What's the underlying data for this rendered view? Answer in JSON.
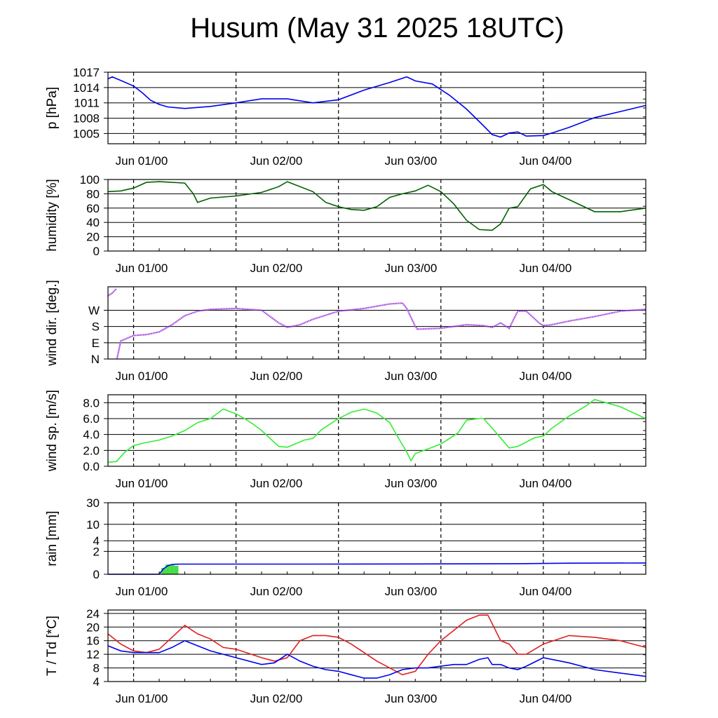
{
  "title": "Husum (May 31 2025 18UTC)",
  "x_ticks": [
    "Jun 01/00",
    "Jun 02/00",
    "Jun 03/00",
    "Jun 04/00"
  ],
  "chart_data": [
    {
      "type": "line",
      "ylabel": "p [hPa]",
      "ylim": [
        1003,
        1017
      ],
      "yticks": [
        1005,
        1008,
        1011,
        1014,
        1017
      ],
      "ytick_labels": [
        "1005",
        "1008",
        "1011",
        "1014",
        "1017"
      ],
      "x_hours": [
        0,
        1,
        3,
        6,
        8,
        10,
        12,
        14,
        18,
        24,
        30,
        36,
        42,
        48,
        54,
        60,
        66,
        70,
        72,
        76,
        80,
        84,
        88,
        90,
        92,
        94,
        96,
        98,
        102,
        104,
        108,
        114,
        120,
        126
      ],
      "series": [
        {
          "color": "#0000ee",
          "values": [
            1015.7,
            1016.1,
            1015.4,
            1014.3,
            1013.0,
            1011.5,
            1010.7,
            1010.2,
            1009.9,
            1010.3,
            1011.0,
            1011.8,
            1011.8,
            1011.0,
            1011.6,
            1013.5,
            1015.0,
            1016.1,
            1015.3,
            1014.7,
            1012.5,
            1009.8,
            1006.5,
            1004.8,
            1004.3,
            1005.1,
            1005.3,
            1004.5,
            1004.6,
            1005.1,
            1006.2,
            1008.1,
            1009.3,
            1010.5
          ]
        }
      ]
    },
    {
      "type": "line",
      "ylabel": "humidity [%]",
      "ylim": [
        0,
        100
      ],
      "yticks": [
        0,
        20,
        40,
        60,
        80,
        100
      ],
      "ytick_labels": [
        "0",
        "20",
        "40",
        "60",
        "80",
        "100"
      ],
      "x_hours": [
        0,
        3,
        6,
        9,
        12,
        15,
        18,
        20,
        21,
        24,
        30,
        36,
        40,
        42,
        48,
        51,
        54,
        57,
        60,
        63,
        66,
        69,
        72,
        75,
        78,
        81,
        84,
        87,
        90,
        92,
        94,
        96,
        99,
        102,
        104,
        108,
        114,
        120,
        126
      ],
      "series": [
        {
          "color": "#006000",
          "values": [
            83,
            84,
            88,
            96,
            97,
            96,
            95,
            80,
            68,
            74,
            77,
            82,
            90,
            97,
            83,
            68,
            62,
            58,
            57,
            62,
            75,
            80,
            84,
            92,
            83,
            66,
            43,
            30,
            29,
            38,
            60,
            62,
            87,
            93,
            83,
            72,
            55,
            55,
            60
          ]
        }
      ]
    },
    {
      "type": "scatter",
      "ylabel": "wind dir. [deg.]",
      "ylim": [
        0,
        400
      ],
      "yticks": [
        0,
        90,
        180,
        270
      ],
      "ytick_labels": [
        "N",
        "E",
        "S",
        "W"
      ],
      "x_hours": [
        0,
        1,
        2,
        2.1,
        3,
        6,
        9,
        12,
        15,
        18,
        21,
        24,
        30,
        36,
        40,
        42,
        45,
        48,
        54,
        60,
        66,
        69,
        70,
        72,
        72.5,
        78,
        84,
        88,
        90,
        92,
        94,
        96,
        98,
        101,
        102,
        104,
        108,
        114,
        120,
        126
      ],
      "series": [
        {
          "color": "#9a2fe0",
          "values": [
            350,
            365,
            390,
            0,
            100,
            130,
            135,
            150,
            190,
            240,
            265,
            275,
            280,
            270,
            200,
            175,
            190,
            220,
            265,
            280,
            305,
            310,
            280,
            180,
            165,
            170,
            190,
            185,
            175,
            200,
            170,
            265,
            265,
            200,
            185,
            190,
            210,
            235,
            265,
            275
          ]
        }
      ]
    },
    {
      "type": "line",
      "ylabel": "wind sp. [m/s]",
      "ylim": [
        0,
        9
      ],
      "yticks": [
        0,
        2,
        4,
        6,
        8
      ],
      "ytick_labels": [
        "0.0",
        "2.0",
        "4.0",
        "6.0",
        "8.0"
      ],
      "x_hours": [
        0,
        2,
        4,
        6,
        9,
        12,
        15,
        18,
        21,
        24,
        27,
        30,
        32,
        34,
        36,
        40,
        42,
        46,
        48,
        50,
        54,
        57,
        60,
        63,
        66,
        68,
        70,
        71,
        72,
        75,
        78,
        82,
        84,
        87,
        88,
        90,
        94,
        96,
        100,
        102,
        104,
        108,
        112,
        114,
        120,
        126
      ],
      "series": [
        {
          "color": "#33ee33",
          "values": [
            0.5,
            0.6,
            1.8,
            2.6,
            3.0,
            3.3,
            3.8,
            4.5,
            5.5,
            6.0,
            7.2,
            6.6,
            6.0,
            5.3,
            4.5,
            2.5,
            2.4,
            3.3,
            3.5,
            4.6,
            6.0,
            6.8,
            7.2,
            6.7,
            5.5,
            3.6,
            1.8,
            0.7,
            1.6,
            2.2,
            2.8,
            4.2,
            5.8,
            6.0,
            6.0,
            4.8,
            2.3,
            2.5,
            3.6,
            3.8,
            4.8,
            6.3,
            7.6,
            8.4,
            7.5,
            6.0
          ]
        }
      ]
    },
    {
      "type": "area",
      "ylabel": "rain [mm]",
      "ylim": [
        0,
        30
      ],
      "yticks": [
        0,
        2,
        4,
        10,
        30
      ],
      "ytick_labels": [
        "0",
        "2",
        "4",
        "10",
        "30"
      ],
      "x_hours": [
        0,
        12,
        13,
        14,
        15,
        16,
        17,
        24,
        48,
        72,
        96,
        108,
        126
      ],
      "series": [
        {
          "color": "#0000ee",
          "values": [
            0,
            0,
            0.3,
            0.5,
            0.6,
            0.62,
            0.63,
            0.63,
            0.63,
            0.64,
            0.66,
            0.7,
            0.72
          ]
        }
      ],
      "bars": [
        {
          "x": 13,
          "value": 0.35
        },
        {
          "x": 14,
          "value": 0.6
        },
        {
          "x": 15,
          "value": 0.6
        },
        {
          "x": 16,
          "value": 0.5
        }
      ],
      "bar_color": "#44dd44"
    },
    {
      "type": "line",
      "ylabel": "T / Td [*C]",
      "ylim": [
        4,
        25
      ],
      "yticks": [
        4,
        8,
        12,
        16,
        20,
        24
      ],
      "ytick_labels": [
        "4",
        "8",
        "12",
        "16",
        "20",
        "24"
      ],
      "x_hours": [
        0,
        3,
        6,
        9,
        12,
        15,
        18,
        21,
        24,
        27,
        30,
        36,
        39,
        42,
        45,
        48,
        51,
        54,
        57,
        60,
        63,
        66,
        69,
        72,
        75,
        78,
        81,
        84,
        87,
        89,
        90,
        92,
        94,
        96,
        98,
        102,
        108,
        114,
        120,
        126
      ],
      "series": [
        {
          "color": "#e02020",
          "values": [
            18,
            15,
            13,
            12.5,
            13.5,
            17,
            20.5,
            18,
            16.5,
            14,
            13.5,
            11,
            10,
            11,
            16,
            17.5,
            17.5,
            17,
            15,
            12.5,
            10,
            8,
            6,
            7,
            12,
            16,
            19,
            22,
            23.5,
            23.5,
            21,
            16,
            15,
            12,
            12,
            15,
            17.5,
            17,
            16,
            14
          ]
        },
        {
          "color": "#0000ee",
          "values": [
            14.5,
            13,
            12.5,
            12.5,
            12.5,
            14,
            16,
            14.5,
            13,
            12,
            11,
            9,
            9.5,
            12,
            10,
            8.5,
            7.5,
            7,
            6,
            5,
            5,
            6,
            7.5,
            8,
            8,
            8.5,
            9,
            9,
            10.5,
            11,
            9,
            9,
            8,
            7.5,
            8.5,
            11,
            9.5,
            7.5,
            6.5,
            5.5
          ]
        }
      ]
    }
  ]
}
